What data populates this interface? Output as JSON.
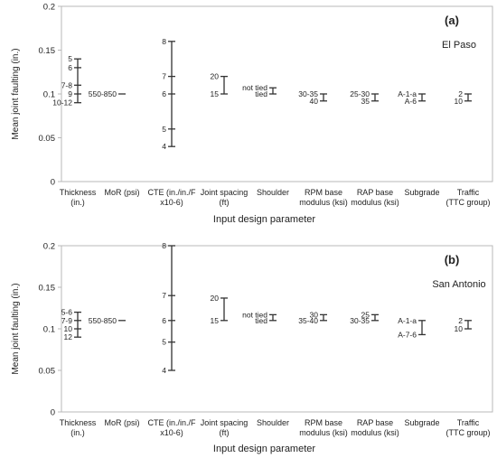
{
  "chart_data": [
    {
      "type": "range",
      "panel_label": "(a)",
      "location": "El Paso",
      "ylabel": "Mean joint faulting (in.)",
      "xlabel": "Input design parameter",
      "ylim": [
        0,
        0.2
      ],
      "yticks": [
        "0",
        "0.05",
        "0.1",
        "0.15",
        "0.2"
      ],
      "grid": false,
      "categories": [
        {
          "label": [
            "Thickness",
            "(in.)"
          ],
          "ymin": 0.09,
          "ymax": 0.14,
          "points": [
            {
              "label": "5",
              "y": 0.14
            },
            {
              "label": "6",
              "y": 0.13
            },
            {
              "label": "7-8",
              "y": 0.11
            },
            {
              "label": "9",
              "y": 0.1
            },
            {
              "label": "10-12",
              "y": 0.09
            }
          ]
        },
        {
          "label": [
            "MoR (psi)"
          ],
          "ymin": 0.1,
          "ymax": 0.1,
          "points": [
            {
              "label": "550-850",
              "y": 0.1
            }
          ]
        },
        {
          "label": [
            "CTE (in./in./F",
            "x10-6)"
          ],
          "ymin": 0.04,
          "ymax": 0.16,
          "points": [
            {
              "label": "8",
              "y": 0.16
            },
            {
              "label": "7",
              "y": 0.12
            },
            {
              "label": "6",
              "y": 0.1
            },
            {
              "label": "5",
              "y": 0.06
            },
            {
              "label": "4",
              "y": 0.04
            }
          ]
        },
        {
          "label": [
            "Joint spacing",
            "(ft)"
          ],
          "ymin": 0.1,
          "ymax": 0.12,
          "points": [
            {
              "label": "20",
              "y": 0.12
            },
            {
              "label": "15",
              "y": 0.1
            }
          ]
        },
        {
          "label": [
            "Shoulder"
          ],
          "ymin": 0.1,
          "ymax": 0.107,
          "points": [
            {
              "label": "not tied",
              "y": 0.107
            },
            {
              "label": "tied",
              "y": 0.1
            }
          ]
        },
        {
          "label": [
            "RPM base",
            "modulus (ksi)"
          ],
          "ymin": 0.092,
          "ymax": 0.1,
          "points": [
            {
              "label": "30-35",
              "y": 0.1
            },
            {
              "label": "40",
              "y": 0.092
            }
          ]
        },
        {
          "label": [
            "RAP base",
            "modulus (ksi)"
          ],
          "ymin": 0.092,
          "ymax": 0.1,
          "points": [
            {
              "label": "25-30",
              "y": 0.1
            },
            {
              "label": "35",
              "y": 0.092
            }
          ]
        },
        {
          "label": [
            "Subgrade"
          ],
          "ymin": 0.092,
          "ymax": 0.1,
          "points": [
            {
              "label": "A-1-a",
              "y": 0.1
            },
            {
              "label": "A-6",
              "y": 0.092
            }
          ]
        },
        {
          "label": [
            "Traffic",
            "(TTC group)"
          ],
          "ymin": 0.092,
          "ymax": 0.1,
          "points": [
            {
              "label": "2",
              "y": 0.1
            },
            {
              "label": "10",
              "y": 0.092
            }
          ]
        }
      ]
    },
    {
      "type": "range",
      "panel_label": "(b)",
      "location": "San Antonio",
      "ylabel": "Mean joint faulting (in.)",
      "xlabel": "Input design parameter",
      "ylim": [
        0,
        0.2
      ],
      "yticks": [
        "0",
        "0.05",
        "0.1",
        "0.15",
        "0.2"
      ],
      "grid": false,
      "categories": [
        {
          "label": [
            "Thickness",
            "(in.)"
          ],
          "ymin": 0.09,
          "ymax": 0.12,
          "points": [
            {
              "label": "5-6",
              "y": 0.12
            },
            {
              "label": "7-9",
              "y": 0.11
            },
            {
              "label": "10",
              "y": 0.1
            },
            {
              "label": "12",
              "y": 0.09
            }
          ]
        },
        {
          "label": [
            "MoR (psi)"
          ],
          "ymin": 0.11,
          "ymax": 0.11,
          "points": [
            {
              "label": "550-850",
              "y": 0.11
            }
          ]
        },
        {
          "label": [
            "CTE (in./in./F",
            "x10-6)"
          ],
          "ymin": 0.05,
          "ymax": 0.2,
          "points": [
            {
              "label": "8",
              "y": 0.2
            },
            {
              "label": "7",
              "y": 0.14
            },
            {
              "label": "6",
              "y": 0.11
            },
            {
              "label": "5",
              "y": 0.084
            },
            {
              "label": "4",
              "y": 0.05
            }
          ]
        },
        {
          "label": [
            "Joint spacing",
            "(ft)"
          ],
          "ymin": 0.11,
          "ymax": 0.137,
          "points": [
            {
              "label": "20",
              "y": 0.137
            },
            {
              "label": "15",
              "y": 0.11
            }
          ]
        },
        {
          "label": [
            "Shoulder"
          ],
          "ymin": 0.11,
          "ymax": 0.117,
          "points": [
            {
              "label": "not tied",
              "y": 0.117
            },
            {
              "label": "tied",
              "y": 0.11
            }
          ]
        },
        {
          "label": [
            "RPM base",
            "modulus (ksi)"
          ],
          "ymin": 0.11,
          "ymax": 0.117,
          "points": [
            {
              "label": "30",
              "y": 0.117
            },
            {
              "label": "35-40",
              "y": 0.11
            }
          ]
        },
        {
          "label": [
            "RAP base",
            "modulus (ksi)"
          ],
          "ymin": 0.11,
          "ymax": 0.117,
          "points": [
            {
              "label": "25",
              "y": 0.117
            },
            {
              "label": "30-35",
              "y": 0.11
            }
          ]
        },
        {
          "label": [
            "Subgrade"
          ],
          "ymin": 0.093,
          "ymax": 0.11,
          "points": [
            {
              "label": "A-1-a",
              "y": 0.11
            },
            {
              "label": "A-7-6",
              "y": 0.093
            }
          ]
        },
        {
          "label": [
            "Traffic",
            "(TTC group)"
          ],
          "ymin": 0.1,
          "ymax": 0.11,
          "points": [
            {
              "label": "2",
              "y": 0.11
            },
            {
              "label": "10",
              "y": 0.1
            }
          ]
        }
      ]
    }
  ]
}
